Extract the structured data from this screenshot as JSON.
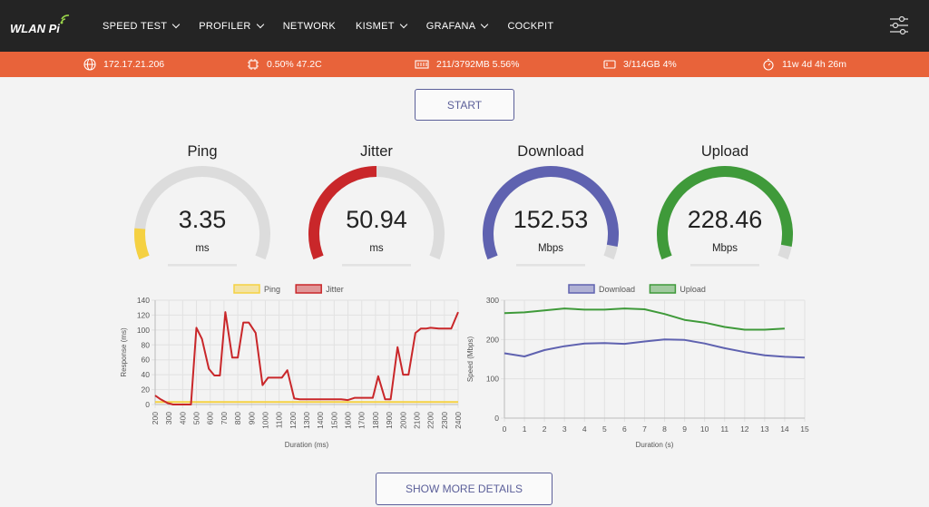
{
  "app": {
    "logo_text": "WLAN Pi",
    "nav": [
      "SPEED TEST",
      "PROFILER",
      "NETWORK",
      "KISMET",
      "GRAFANA",
      "COCKPIT"
    ],
    "nav_has_dropdown": [
      true,
      true,
      false,
      true,
      true,
      false
    ]
  },
  "status": {
    "ip": "172.17.21.206",
    "cpu": "0.50% 47.2C",
    "memory": "211/3792MB 5.56%",
    "disk": "3/114GB 4%",
    "uptime": "11w 4d 4h 26m"
  },
  "start_label": "START",
  "more_label": "SHOW MORE DETAILS",
  "gauges": [
    {
      "name": "ping",
      "title": "Ping",
      "value": "3.35",
      "unit": "ms",
      "fraction": 0.12,
      "color": "#f5d142"
    },
    {
      "name": "jitter",
      "title": "Jitter",
      "value": "50.94",
      "unit": "ms",
      "fraction": 0.5,
      "color": "#c9272a"
    },
    {
      "name": "download",
      "title": "Download",
      "value": "152.53",
      "unit": "Mbps",
      "fraction": 0.95,
      "color": "#5f62b0"
    },
    {
      "name": "upload",
      "title": "Upload",
      "value": "228.46",
      "unit": "Mbps",
      "fraction": 0.95,
      "color": "#3f9a3a"
    }
  ],
  "chart_data": [
    {
      "type": "line",
      "xlabel": "Duration (ms)",
      "ylabel": "Response (ms)",
      "ylim": [
        0,
        140
      ],
      "yticks": [
        0,
        20,
        40,
        60,
        80,
        100,
        120,
        140
      ],
      "xlim": [
        200,
        2400
      ],
      "xticks": [
        200,
        300,
        400,
        500,
        600,
        700,
        800,
        900,
        1000,
        1100,
        1200,
        1300,
        1400,
        1500,
        1600,
        1700,
        1800,
        1900,
        2000,
        2100,
        2200,
        2300,
        2400
      ],
      "legend": "top-center",
      "grid": true,
      "series": [
        {
          "name": "Ping",
          "color": "#f5d142",
          "x": [
            200,
            2400
          ],
          "values": [
            3.35,
            3.35
          ]
        },
        {
          "name": "Jitter",
          "color": "#c9272a",
          "x": [
            200,
            240,
            290,
            330,
            360,
            410,
            460,
            500,
            540,
            590,
            630,
            670,
            710,
            760,
            800,
            840,
            880,
            930,
            980,
            1020,
            1070,
            1120,
            1160,
            1210,
            1250,
            1300,
            1340,
            1380,
            1420,
            1460,
            1500,
            1550,
            1600,
            1650,
            1700,
            1740,
            1780,
            1820,
            1870,
            1910,
            1960,
            2000,
            2040,
            2090,
            2130,
            2170,
            2200,
            2260,
            2300,
            2350,
            2400
          ],
          "values": [
            12,
            7,
            2,
            0,
            0,
            0,
            0,
            103,
            88,
            48,
            39,
            39,
            124,
            63,
            63,
            110,
            110,
            96,
            26,
            36,
            36,
            36,
            46,
            8,
            7,
            7,
            7,
            7,
            7,
            7,
            7,
            7,
            6,
            9,
            9,
            9,
            9,
            38,
            7,
            7,
            77,
            40,
            40,
            96,
            102,
            102,
            103,
            102,
            102,
            102,
            124
          ]
        }
      ]
    },
    {
      "type": "line",
      "xlabel": "Duration (s)",
      "ylabel": "Speed (Mbps)",
      "ylim": [
        0,
        300
      ],
      "yticks": [
        0,
        100,
        200,
        300
      ],
      "xlim": [
        0,
        15
      ],
      "xticks": [
        0,
        1,
        2,
        3,
        4,
        5,
        6,
        7,
        8,
        9,
        10,
        11,
        12,
        13,
        14,
        15
      ],
      "legend": "top-center",
      "grid": true,
      "series": [
        {
          "name": "Download",
          "color": "#5f62b0",
          "x": [
            0,
            1,
            2,
            3,
            4,
            5,
            6,
            7,
            8,
            9,
            10,
            11,
            12,
            13,
            14,
            15
          ],
          "values": [
            165,
            157,
            173,
            183,
            190,
            191,
            189,
            195,
            200,
            199,
            190,
            178,
            168,
            160,
            156,
            154
          ]
        },
        {
          "name": "Upload",
          "color": "#3f9a3a",
          "x": [
            0,
            1,
            2,
            3,
            4,
            5,
            6,
            7,
            8,
            9,
            10,
            11,
            12,
            13,
            14
          ],
          "values": [
            267,
            269,
            274,
            279,
            276,
            276,
            279,
            277,
            265,
            250,
            243,
            232,
            225,
            225,
            228
          ]
        }
      ]
    }
  ]
}
